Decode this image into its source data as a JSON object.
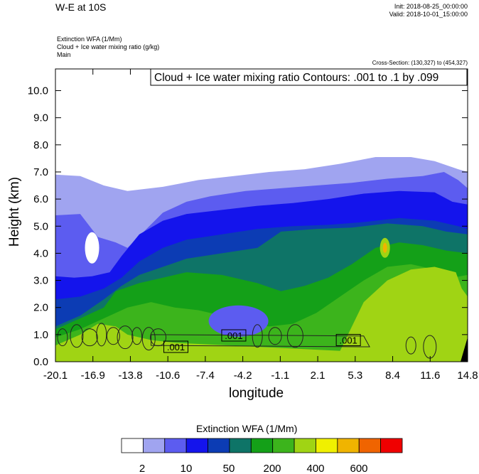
{
  "header": {
    "title": "W-E at 10S",
    "init": "Init: 2018-08-25_00:00:00",
    "valid": "Valid: 2018-10-01_15:00:00",
    "field1": "Extinction WFA   (1/Mm)",
    "field2": "Cloud + Ice water mixing ratio   (g/kg)",
    "field3": "Main",
    "cross_section": "Cross-Section: (130,327) to (454,327)"
  },
  "chart_data": {
    "type": "heatmap",
    "title": "W-E at 10S",
    "xlabel": "longitude",
    "ylabel": "Height (km)",
    "contour_label": "Cloud + Ice water mixing ratio Contours: .001 to .1 by .099",
    "x_ticks": [
      "-20.1",
      "-16.9",
      "-13.8",
      "-10.6",
      "-7.4",
      "-4.2",
      "-1.1",
      "2.1",
      "5.3",
      "8.4",
      "11.6",
      "14.8"
    ],
    "xlim": [
      -20.1,
      14.8
    ],
    "y_ticks": [
      "0.0",
      "1.0",
      "2.0",
      "3.0",
      "4.0",
      "5.0",
      "6.0",
      "7.0",
      "8.0",
      "9.0",
      "10.0"
    ],
    "ylim": [
      0,
      10.8
    ],
    "contour_labels": [
      {
        "text": ".001",
        "x": -9.9,
        "y": 0.55
      },
      {
        "text": ".001",
        "x": -5.0,
        "y": 0.97
      },
      {
        "text": ".001",
        "x": 4.7,
        "y": 0.8
      }
    ],
    "colorbar": {
      "title": "Extinction WFA  (1/Mm)",
      "tick_labels": [
        "2",
        "10",
        "50",
        "200",
        "400",
        "600"
      ],
      "colors": [
        "#ffffff",
        "#a0a4f0",
        "#5c5cf0",
        "#1414ec",
        "#0c3cb4",
        "#0e7467",
        "#14a018",
        "#3cb41c",
        "#a0d414",
        "#f0f000",
        "#f0b400",
        "#f06400",
        "#f00000"
      ]
    },
    "field_layers": [
      {
        "level": 1,
        "top": [
          [
            -20.1,
            6.9
          ],
          [
            -18,
            6.85
          ],
          [
            -16,
            6.5
          ],
          [
            -14,
            6.3
          ],
          [
            -11,
            6.45
          ],
          [
            -8,
            6.7
          ],
          [
            -5,
            6.85
          ],
          [
            -2,
            7.0
          ],
          [
            1,
            7.1
          ],
          [
            4,
            7.3
          ],
          [
            7,
            7.55
          ],
          [
            10,
            7.55
          ],
          [
            12,
            7.4
          ],
          [
            14,
            7.1
          ],
          [
            14.8,
            7.0
          ]
        ]
      },
      {
        "level": 2,
        "top": [
          [
            -20.1,
            5.4
          ],
          [
            -18,
            5.45
          ],
          [
            -16.5,
            4.6
          ],
          [
            -15,
            4.4
          ],
          [
            -14,
            4.2
          ],
          [
            -12.5,
            4.85
          ],
          [
            -11,
            5.5
          ],
          [
            -9,
            5.9
          ],
          [
            -7,
            6.1
          ],
          [
            -4,
            6.3
          ],
          [
            -1,
            6.4
          ],
          [
            2,
            6.5
          ],
          [
            5,
            6.6
          ],
          [
            8,
            6.75
          ],
          [
            11,
            6.85
          ],
          [
            12.8,
            7.0
          ],
          [
            14,
            6.7
          ],
          [
            14.8,
            6.4
          ]
        ]
      },
      {
        "level": 3,
        "top": [
          [
            -20.1,
            3.15
          ],
          [
            -18.5,
            3.1
          ],
          [
            -17,
            3.15
          ],
          [
            -15.5,
            3.3
          ],
          [
            -14.5,
            3.9
          ],
          [
            -13,
            4.7
          ],
          [
            -11,
            5.2
          ],
          [
            -9,
            5.45
          ],
          [
            -6,
            5.6
          ],
          [
            -3,
            5.75
          ],
          [
            0,
            5.85
          ],
          [
            3,
            6.0
          ],
          [
            6,
            6.2
          ],
          [
            9,
            6.3
          ],
          [
            12,
            6.25
          ],
          [
            13.5,
            5.9
          ],
          [
            14.8,
            5.8
          ]
        ]
      },
      {
        "level": 4,
        "top": [
          [
            -20.1,
            2.3
          ],
          [
            -18,
            2.4
          ],
          [
            -16,
            2.7
          ],
          [
            -14.5,
            3.1
          ],
          [
            -13,
            3.7
          ],
          [
            -11,
            4.2
          ],
          [
            -9,
            4.5
          ],
          [
            -6,
            4.7
          ],
          [
            -3,
            4.9
          ],
          [
            0,
            5.0
          ],
          [
            3,
            5.05
          ],
          [
            6,
            5.15
          ],
          [
            9,
            5.3
          ],
          [
            12,
            5.2
          ],
          [
            14,
            5.0
          ],
          [
            14.8,
            4.9
          ]
        ]
      },
      {
        "level": 5,
        "top": [
          [
            -20.1,
            1.3
          ],
          [
            -18,
            1.7
          ],
          [
            -16,
            2.3
          ],
          [
            -14.5,
            2.8
          ],
          [
            -13,
            3.2
          ],
          [
            -11,
            3.5
          ],
          [
            -9,
            3.8
          ],
          [
            -6,
            4.0
          ],
          [
            -3,
            4.2
          ],
          [
            -1,
            4.8
          ],
          [
            2,
            4.9
          ],
          [
            5,
            4.95
          ],
          [
            8,
            5.1
          ],
          [
            11,
            5.0
          ],
          [
            13,
            4.8
          ],
          [
            14.8,
            4.7
          ]
        ]
      },
      {
        "level": 6,
        "top": [
          [
            -20.1,
            1.2
          ],
          [
            -18,
            1.6
          ],
          [
            -16,
            2.0
          ],
          [
            -15,
            2.6
          ],
          [
            -13,
            2.9
          ],
          [
            -11,
            3.1
          ],
          [
            -9,
            3.3
          ],
          [
            -6,
            3.2
          ],
          [
            -3,
            2.9
          ],
          [
            -1,
            2.6
          ],
          [
            1,
            2.8
          ],
          [
            3,
            3.1
          ],
          [
            5,
            3.6
          ],
          [
            7,
            4.2
          ],
          [
            9,
            4.4
          ],
          [
            11,
            4.3
          ],
          [
            13,
            4.1
          ],
          [
            14.8,
            4.0
          ]
        ]
      },
      {
        "level": 7,
        "top": [
          [
            -20.1,
            0.9
          ],
          [
            -18,
            1.2
          ],
          [
            -16,
            1.6
          ],
          [
            -14,
            2.0
          ],
          [
            -12,
            2.2
          ],
          [
            -10,
            2.0
          ],
          [
            -8,
            1.9
          ],
          [
            -6,
            1.7
          ],
          [
            -4,
            1.4
          ],
          [
            -2,
            1.3
          ],
          [
            0,
            1.4
          ],
          [
            2,
            1.8
          ],
          [
            4,
            2.4
          ],
          [
            6,
            3.0
          ],
          [
            8,
            3.5
          ],
          [
            10,
            3.6
          ],
          [
            12,
            3.4
          ],
          [
            13.5,
            3.1
          ],
          [
            14.8,
            3.2
          ]
        ]
      },
      {
        "level": 8,
        "top": [
          [
            -20.1,
            0.6
          ],
          [
            -18,
            1.0
          ],
          [
            -16.5,
            1.4
          ],
          [
            -15,
            1.3
          ],
          [
            -14,
            1.0
          ],
          [
            -12,
            0.8
          ],
          [
            -10,
            0.7
          ],
          [
            4,
            0.4
          ],
          [
            6,
            2.2
          ],
          [
            8,
            3.0
          ],
          [
            10,
            3.4
          ],
          [
            12,
            3.5
          ],
          [
            13.8,
            3.3
          ],
          [
            14.3,
            2.7
          ],
          [
            14.8,
            2.4
          ]
        ]
      }
    ]
  }
}
